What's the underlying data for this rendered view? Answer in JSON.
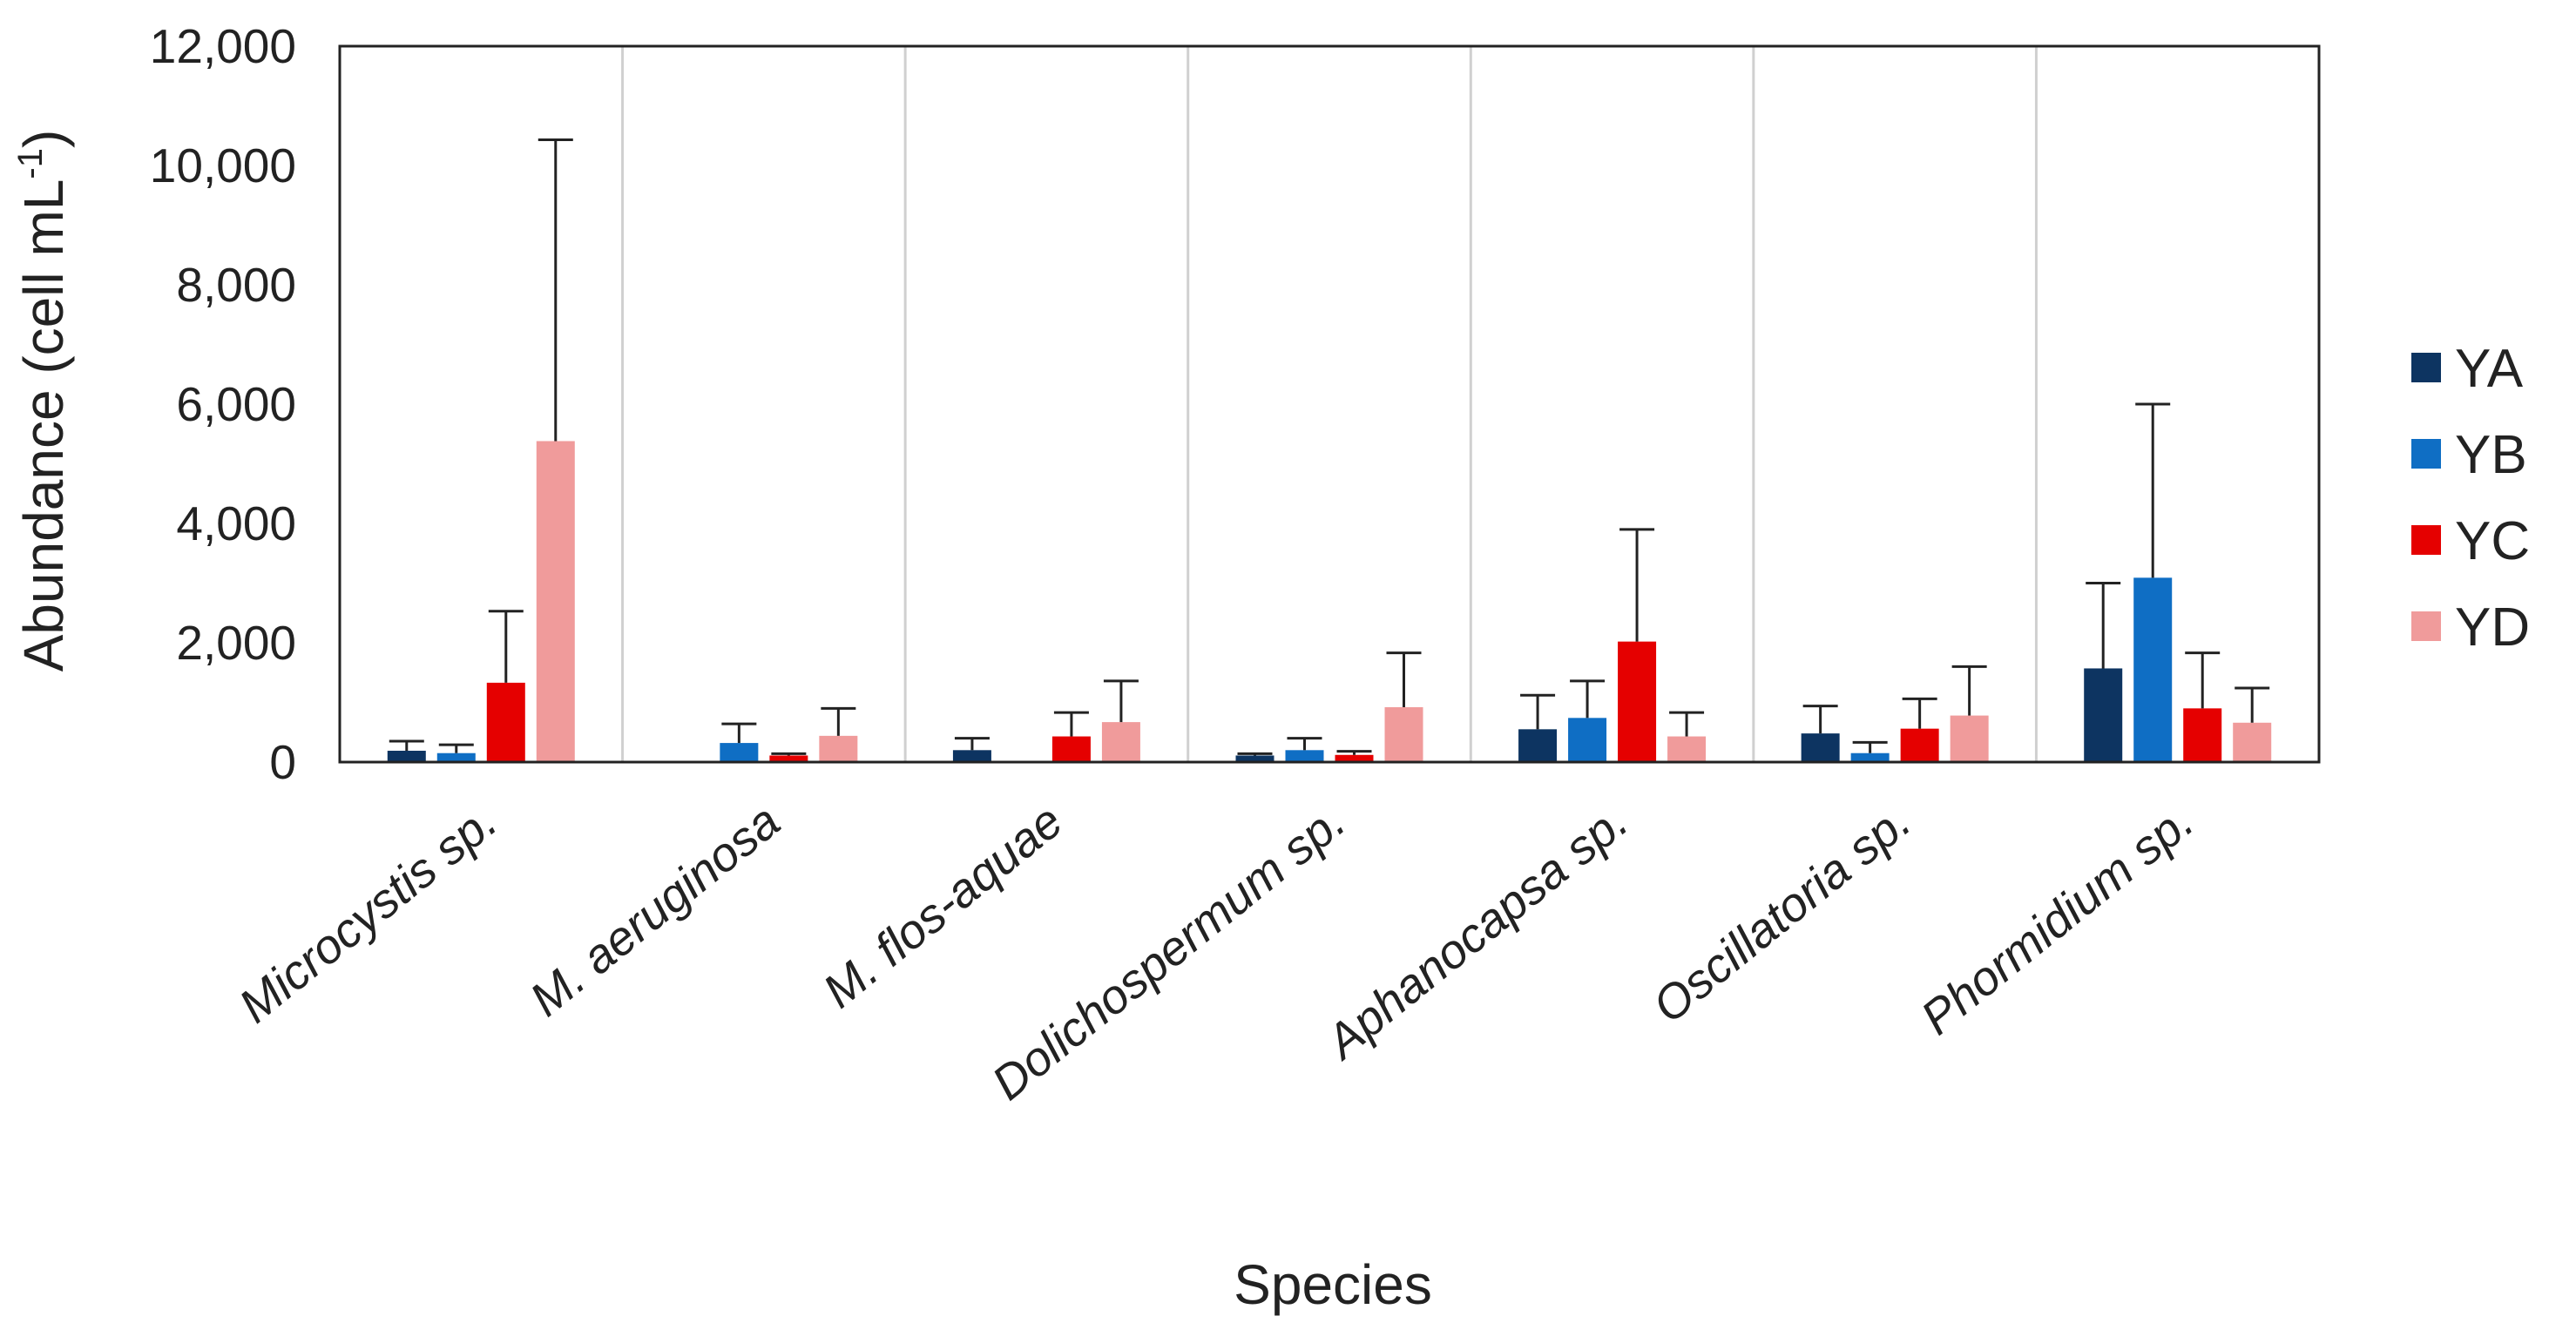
{
  "chart_data": {
    "type": "bar",
    "title": "",
    "xlabel": "Species",
    "ylabel": "Abundance (cell mL",
    "ylabel_superscript": "-1",
    "ylabel_suffix": ")",
    "ylim": [
      0,
      12000
    ],
    "yticks": [
      0,
      2000,
      4000,
      6000,
      8000,
      10000,
      12000
    ],
    "ytick_labels": [
      "0",
      "2,000",
      "4,000",
      "6,000",
      "8,000",
      "10,000",
      "12,000"
    ],
    "grid": "vertical separators between categories",
    "legend_position": "right",
    "categories": [
      "Microcystis sp.",
      "M. aeruginosa",
      "M. flos-aquae",
      "Dolichospermum sp.",
      "Aphanocapsa sp.",
      "Oscillatoria sp.",
      "Phormidium sp."
    ],
    "series": [
      {
        "name": "YA",
        "color": "#0d3461",
        "values": [
          190,
          0,
          200,
          110,
          550,
          480,
          1570
        ],
        "errors": [
          160,
          0,
          200,
          30,
          570,
          460,
          1430
        ]
      },
      {
        "name": "YB",
        "color": "#0f6ec4",
        "values": [
          150,
          320,
          0,
          200,
          740,
          150,
          3090
        ],
        "errors": [
          140,
          320,
          0,
          200,
          620,
          180,
          2910
        ]
      },
      {
        "name": "YC",
        "color": "#e50000",
        "values": [
          1330,
          110,
          430,
          120,
          2020,
          560,
          900
        ],
        "errors": [
          1200,
          30,
          400,
          60,
          1880,
          500,
          930
        ]
      },
      {
        "name": "YD",
        "color": "#f09b9b",
        "values": [
          5380,
          440,
          670,
          920,
          430,
          780,
          660
        ],
        "errors": [
          5050,
          460,
          690,
          910,
          400,
          820,
          580
        ]
      }
    ]
  }
}
